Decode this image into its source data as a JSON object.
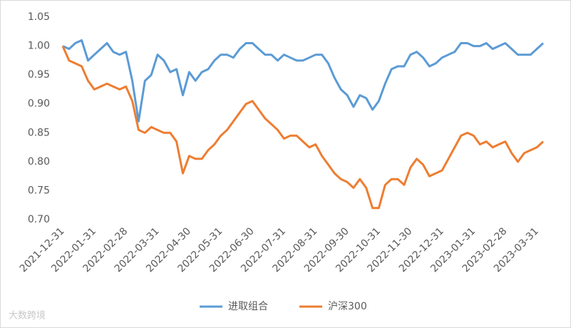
{
  "chart_data": {
    "type": "line",
    "categories": [
      "2021-12-31",
      null,
      null,
      null,
      null,
      "2022-01-31",
      null,
      null,
      null,
      null,
      "2022-02-28",
      null,
      null,
      null,
      null,
      "2022-03-31",
      null,
      null,
      null,
      null,
      "2022-04-30",
      null,
      null,
      null,
      null,
      "2022-05-31",
      null,
      null,
      null,
      null,
      "2022-06-30",
      null,
      null,
      null,
      null,
      "2022-07-31",
      null,
      null,
      null,
      null,
      "2022-08-31",
      null,
      null,
      null,
      null,
      "2022-09-30",
      null,
      null,
      null,
      null,
      "2022-10-31",
      null,
      null,
      null,
      null,
      "2022-11-30",
      null,
      null,
      null,
      null,
      "2022-12-31",
      null,
      null,
      null,
      null,
      "2023-01-31",
      null,
      null,
      null,
      null,
      "2023-02-28",
      null,
      null,
      null,
      null,
      "2023-03-31",
      null
    ],
    "series": [
      {
        "name": "进取组合",
        "color": "#5b9bd5",
        "values": [
          1.0,
          0.995,
          1.005,
          1.01,
          0.975,
          0.985,
          0.995,
          1.005,
          0.99,
          0.985,
          0.99,
          0.94,
          0.87,
          0.94,
          0.95,
          0.985,
          0.975,
          0.955,
          0.96,
          0.915,
          0.955,
          0.94,
          0.955,
          0.96,
          0.975,
          0.985,
          0.985,
          0.98,
          0.995,
          1.005,
          1.005,
          0.995,
          0.985,
          0.985,
          0.975,
          0.985,
          0.98,
          0.975,
          0.975,
          0.98,
          0.985,
          0.985,
          0.97,
          0.945,
          0.925,
          0.915,
          0.895,
          0.915,
          0.91,
          0.89,
          0.905,
          0.935,
          0.96,
          0.965,
          0.965,
          0.985,
          0.99,
          0.98,
          0.965,
          0.97,
          0.98,
          0.985,
          0.99,
          1.005,
          1.005,
          1.0,
          1.0,
          1.005,
          0.995,
          1.0,
          1.005,
          0.995,
          0.985,
          0.985,
          0.985,
          0.995,
          1.005
        ]
      },
      {
        "name": "沪深300",
        "color": "#ed7d31",
        "values": [
          1.0,
          0.975,
          0.97,
          0.965,
          0.94,
          0.925,
          0.93,
          0.935,
          0.93,
          0.925,
          0.93,
          0.905,
          0.855,
          0.85,
          0.86,
          0.855,
          0.85,
          0.85,
          0.835,
          0.78,
          0.81,
          0.805,
          0.805,
          0.82,
          0.83,
          0.845,
          0.855,
          0.87,
          0.885,
          0.9,
          0.905,
          0.89,
          0.875,
          0.865,
          0.855,
          0.84,
          0.845,
          0.845,
          0.835,
          0.825,
          0.83,
          0.81,
          0.795,
          0.78,
          0.77,
          0.765,
          0.755,
          0.77,
          0.755,
          0.72,
          0.72,
          0.76,
          0.77,
          0.77,
          0.76,
          0.79,
          0.805,
          0.795,
          0.775,
          0.78,
          0.785,
          0.805,
          0.825,
          0.845,
          0.85,
          0.845,
          0.83,
          0.835,
          0.825,
          0.83,
          0.835,
          0.815,
          0.8,
          0.815,
          0.82,
          0.825,
          0.835
        ]
      }
    ],
    "ylim": [
      0.7,
      1.05
    ],
    "yticks": [
      {
        "value": 0.7,
        "label": "0.70"
      },
      0.75,
      {
        "value": 0.8,
        "label": "0.80"
      },
      0.85,
      {
        "value": 0.9,
        "label": "0.90"
      },
      0.95,
      {
        "value": 1.0,
        "label": "1.00"
      },
      1.05
    ],
    "grid": false,
    "legend": "bottom",
    "watermark": "大数跨境"
  }
}
